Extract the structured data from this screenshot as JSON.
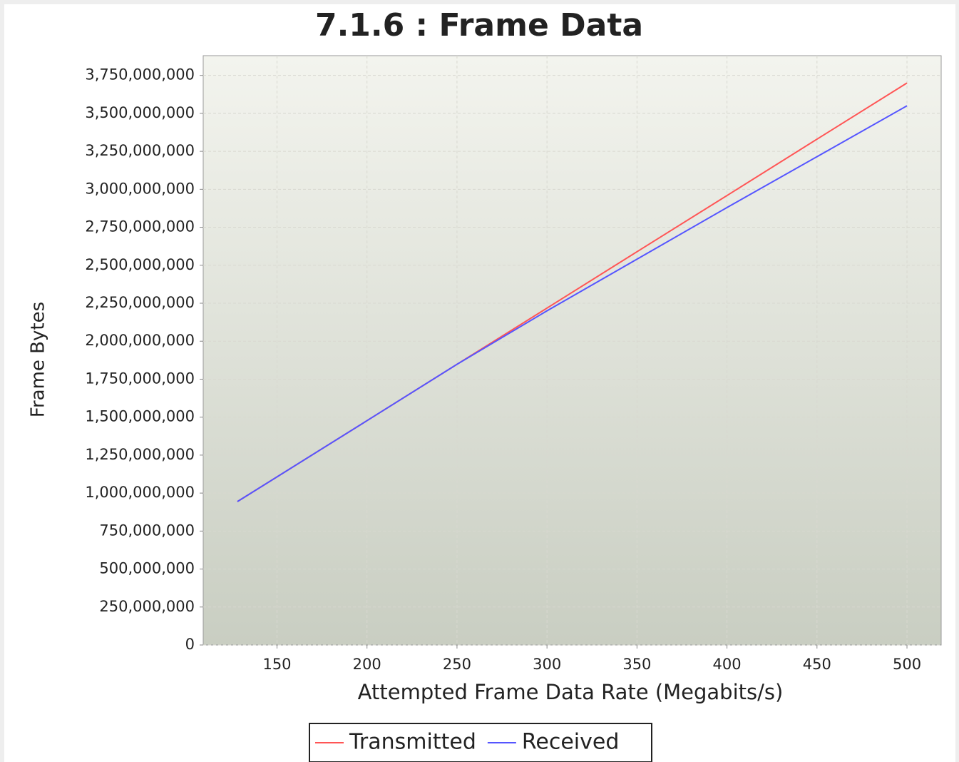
{
  "chart_data": {
    "type": "line",
    "title": "7.1.6 : Frame Data",
    "x_label": "Attempted Frame Data Rate (Megabits/s)",
    "y_label": "Frame Bytes",
    "x": [
      128,
      200,
      250,
      300,
      350,
      400,
      450,
      500
    ],
    "series": [
      {
        "name": "Transmitted",
        "color": "#ff5555",
        "values": [
          944000000,
          1477000000,
          1848000000,
          2218000000,
          2589000000,
          2959000000,
          3330000000,
          3700000000
        ]
      },
      {
        "name": "Received",
        "color": "#5555ff",
        "values": [
          944000000,
          1477000000,
          1848000000,
          2200000000,
          2540000000,
          2880000000,
          3215000000,
          3550000000
        ]
      }
    ],
    "xlim": [
      109,
      519
    ],
    "xticks": [
      150,
      200,
      250,
      300,
      350,
      400,
      450,
      500
    ],
    "ylim": [
      0,
      3880000000
    ],
    "yticks": [
      0,
      {
        "value": 250000000,
        "label": "250,000,000"
      },
      {
        "value": 500000000,
        "label": "500,000,000"
      },
      {
        "value": 750000000,
        "label": "750,000,000"
      },
      {
        "value": 1000000000,
        "label": "1,000,000,000"
      },
      {
        "value": 1250000000,
        "label": "1,250,000,000"
      },
      {
        "value": 1500000000,
        "label": "1,500,000,000"
      },
      {
        "value": 1750000000,
        "label": "1,750,000,000"
      },
      {
        "value": 2000000000,
        "label": "2,000,000,000"
      },
      {
        "value": 2250000000,
        "label": "2,250,000,000"
      },
      {
        "value": 2500000000,
        "label": "2,500,000,000"
      },
      {
        "value": 2750000000,
        "label": "2,750,000,000"
      },
      {
        "value": 3000000000,
        "label": "3,000,000,000"
      },
      {
        "value": 3250000000,
        "label": "3,250,000,000"
      },
      {
        "value": 3500000000,
        "label": "3,500,000,000"
      },
      {
        "value": 3750000000,
        "label": "3,750,000,000"
      }
    ],
    "grid": true,
    "legend": "bottom"
  }
}
